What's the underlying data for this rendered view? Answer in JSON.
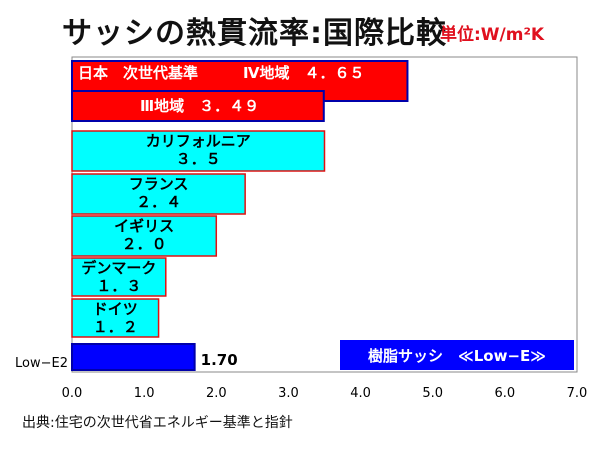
{
  "header": {
    "title": "サッシの熱貫流率:国際比較",
    "unit": "単位:W/m²K"
  },
  "footer": {
    "source": "出典:住宅の次世代省エネルギー基準と指針"
  },
  "colors": {
    "red": "#ff0000",
    "cyan": "#00ffff",
    "blue": "#0000ff",
    "border_blue": "#0000aa",
    "border_red": "#e01010"
  },
  "chart_data": {
    "type": "bar",
    "orientation": "horizontal",
    "title": "サッシの熱貫流率:国際比較",
    "unit": "単位:W/m²K",
    "xlim": [
      0,
      7
    ],
    "xticks": [
      "0.0",
      "1.0",
      "2.0",
      "3.0",
      "4.0",
      "5.0",
      "6.0",
      "7.0"
    ],
    "grid": false,
    "bars": [
      {
        "category": "日本 次世代基準 IV地域",
        "label": "日本　次世代基準　　　Ⅳ地域　４．６５",
        "value": 4.65,
        "color": "#ff0000",
        "label_color": "#ffffff"
      },
      {
        "category": "III地域",
        "label": "Ⅲ地域　３．４９",
        "value": 3.49,
        "color": "#ff0000",
        "label_color": "#ffffff"
      },
      {
        "category": "カリフォルニア",
        "label": "カリフォルニア",
        "value_label": "３．５",
        "value": 3.5,
        "color": "#00ffff",
        "label_color": "#000000"
      },
      {
        "category": "フランス",
        "label": "フランス",
        "value_label": "２．４",
        "value": 2.4,
        "color": "#00ffff",
        "label_color": "#000000"
      },
      {
        "category": "イギリス",
        "label": "イギリス",
        "value_label": "２．０",
        "value": 2.0,
        "color": "#00ffff",
        "label_color": "#000000"
      },
      {
        "category": "デンマーク",
        "label": "デンマーク",
        "value_label": "１．３",
        "value": 1.3,
        "color": "#00ffff",
        "label_color": "#000000"
      },
      {
        "category": "ドイツ",
        "label": "ドイツ",
        "value_label": "１．２",
        "value": 1.2,
        "color": "#00ffff",
        "label_color": "#000000"
      },
      {
        "category": "Low-E2",
        "label": "Low−E2",
        "value_label": "1.70",
        "value": 1.7,
        "color": "#0000ff",
        "label_color": "#000000"
      }
    ],
    "annotation": "樹脂サッシ　≪Low−E≫"
  }
}
